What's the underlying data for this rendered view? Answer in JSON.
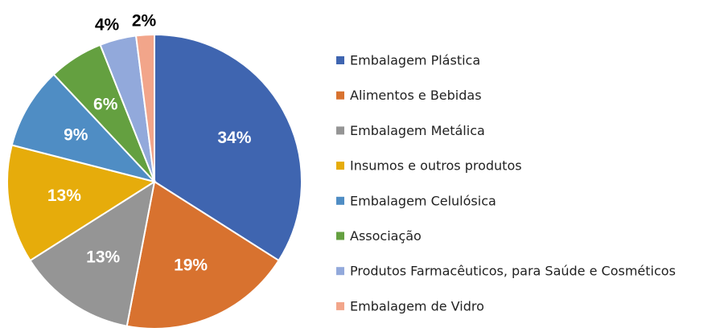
{
  "chart_data": {
    "type": "pie",
    "categories": [
      "Embalagem Plástica",
      "Alimentos e Bebidas",
      "Embalagem Metálica",
      "Insumos e outros produtos",
      "Embalagem Celulósica",
      "Associação",
      "Produtos Farmacêuticos, para Saúde e Cosméticos",
      "Embalagem de Vidro"
    ],
    "values": [
      34,
      19,
      13,
      13,
      9,
      6,
      4,
      2
    ],
    "labels": [
      "34%",
      "19%",
      "13%",
      "13%",
      "9%",
      "6%",
      "4%",
      "2%"
    ],
    "colors": [
      "#3f65b0",
      "#d8722f",
      "#959595",
      "#e6ac0b",
      "#4f8dc4",
      "#64a040",
      "#92a9db",
      "#f2a58a"
    ],
    "label_colors": [
      "#ffffff",
      "#ffffff",
      "#ffffff",
      "#ffffff",
      "#ffffff",
      "#ffffff",
      "#000000",
      "#000000"
    ],
    "legend_position": "right",
    "start_angle": "top, clockwise"
  }
}
